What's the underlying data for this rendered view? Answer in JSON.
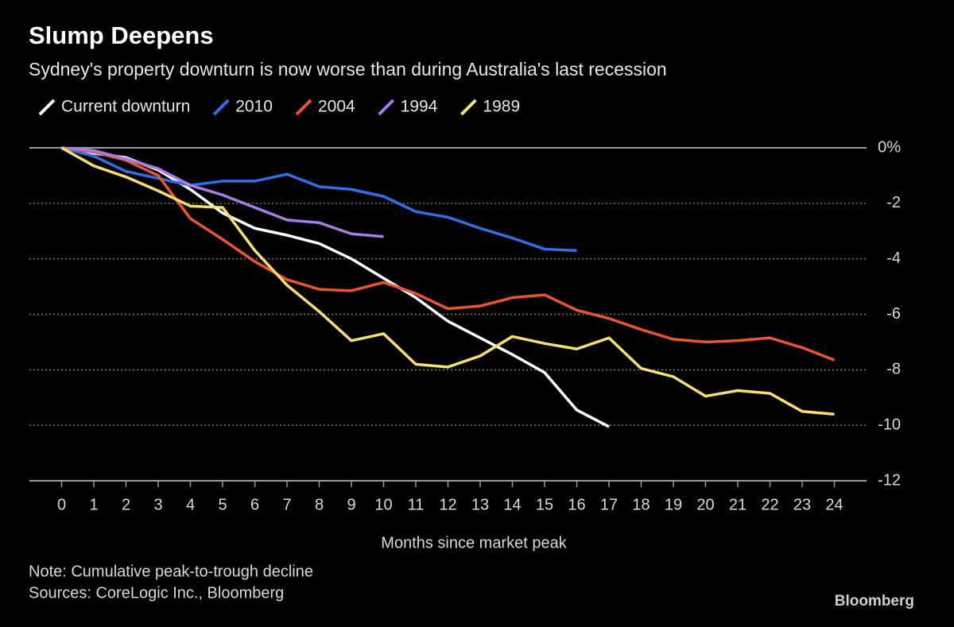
{
  "chart_data": {
    "type": "line",
    "title": "Slump Deepens",
    "subtitle": "Sydney's property downturn is now worse than during Australia's last recession",
    "x_label": "Months since market peak",
    "note": "Note: Cumulative peak-to-trough decline",
    "source": "Sources: CoreLogic Inc., Bloomberg",
    "brand": "Bloomberg",
    "x": [
      0,
      1,
      2,
      3,
      4,
      5,
      6,
      7,
      8,
      9,
      10,
      11,
      12,
      13,
      14,
      15,
      16,
      17,
      18,
      19,
      20,
      21,
      22,
      23,
      24
    ],
    "xlim": [
      -1,
      25
    ],
    "xticks": [
      0,
      1,
      2,
      3,
      4,
      5,
      6,
      7,
      8,
      9,
      10,
      11,
      12,
      13,
      14,
      15,
      16,
      17,
      18,
      19,
      20,
      21,
      22,
      23,
      24
    ],
    "ylim": [
      -12,
      0
    ],
    "yticks": [
      {
        "value": 0,
        "label": "0%"
      },
      -2,
      -4,
      -6,
      -8,
      -10,
      -12
    ],
    "grid": true,
    "series": [
      {
        "name": "Current downturn",
        "color": "#ffffff",
        "values": [
          0,
          -0.2,
          -0.35,
          -0.8,
          -1.5,
          -2.35,
          -2.9,
          -3.15,
          -3.45,
          -4.0,
          -4.7,
          -5.4,
          -6.25,
          -6.85,
          -7.45,
          -8.1,
          -9.45,
          -10.05,
          null,
          null,
          null,
          null,
          null,
          null,
          null
        ]
      },
      {
        "name": "2010",
        "color": "#2f6fe8",
        "values": [
          0,
          -0.3,
          -0.85,
          -1.1,
          -1.35,
          -1.2,
          -1.2,
          -0.95,
          -1.4,
          -1.5,
          -1.75,
          -2.3,
          -2.5,
          -2.9,
          -3.25,
          -3.65,
          -3.7,
          null,
          null,
          null,
          null,
          null,
          null,
          null,
          null
        ]
      },
      {
        "name": "2004",
        "color": "#e8562a",
        "values": [
          0,
          -0.15,
          -0.45,
          -1.0,
          -2.55,
          -3.3,
          -4.1,
          -4.75,
          -5.1,
          -5.15,
          -4.85,
          -5.25,
          -5.8,
          -5.7,
          -5.4,
          -5.3,
          -5.85,
          -6.15,
          -6.55,
          -6.9,
          -7.0,
          -6.95,
          -6.85,
          -7.2,
          -7.65
        ]
      },
      {
        "name": "1994",
        "color": "#a77be8",
        "values": [
          0,
          -0.1,
          -0.4,
          -0.75,
          -1.35,
          -1.7,
          -2.15,
          -2.6,
          -2.7,
          -3.1,
          -3.2,
          null,
          null,
          null,
          null,
          null,
          null,
          null,
          null,
          null,
          null,
          null,
          null,
          null,
          null
        ]
      },
      {
        "name": "1989",
        "color": "#f8df6d",
        "values": [
          0,
          -0.65,
          -1.05,
          -1.55,
          -2.1,
          -2.15,
          -3.7,
          -4.95,
          -5.9,
          -6.95,
          -6.7,
          -7.8,
          -7.9,
          -7.5,
          -6.8,
          -7.05,
          -7.25,
          -6.85,
          -7.95,
          -8.25,
          -8.95,
          -8.75,
          -8.85,
          -9.5,
          -9.6
        ]
      }
    ]
  }
}
